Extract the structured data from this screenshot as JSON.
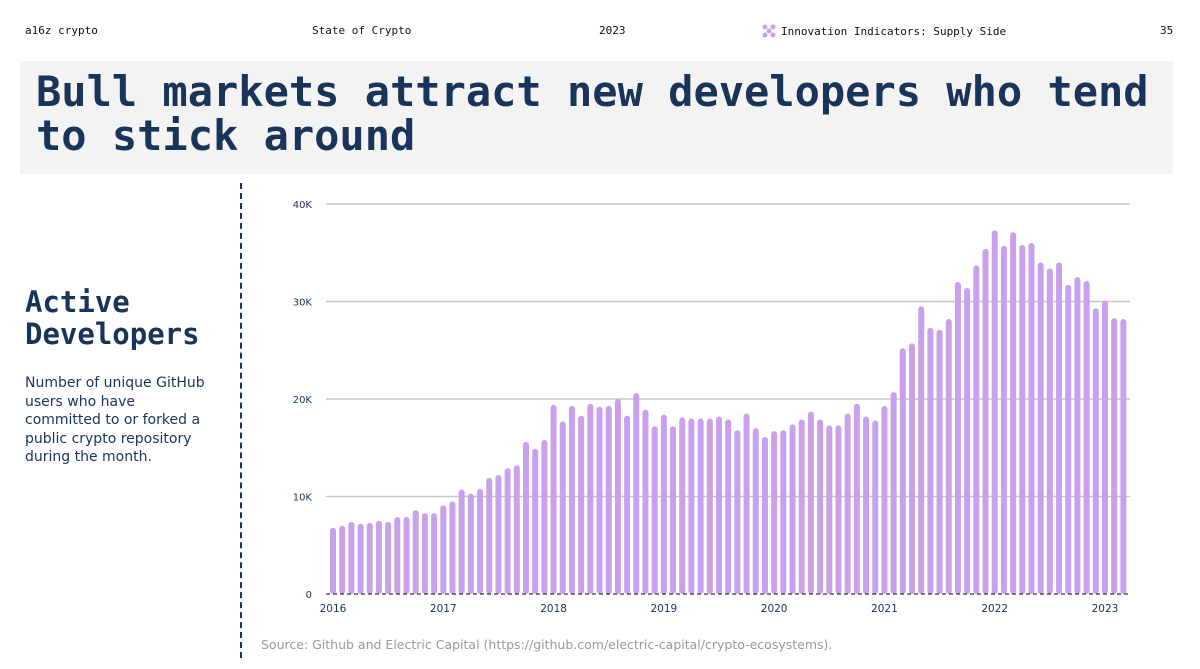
{
  "header": {
    "brand": "a16z crypto",
    "report": "State of Crypto",
    "year": "2023",
    "section": "Innovation Indicators: Supply Side",
    "page": "35",
    "section_icon": "purple-pattern-icon"
  },
  "title": "Bull markets attract new developers who tend to stick around",
  "sidebar": {
    "title": "Active Developers",
    "description": "Number of unique GitHub users who have committed to or forked a public crypto repository during the month."
  },
  "source": "Source: Github and Electric Capital (https://github.com/electric-capital/crypto-ecosystems).",
  "colors": {
    "bar": "#c9a0ec",
    "title": "#1a3358",
    "grid": "#c8c8c8"
  },
  "chart_data": {
    "type": "bar",
    "title": "",
    "xlabel": "",
    "ylabel": "",
    "x_start": "2016-01",
    "x_interval": "month",
    "x_ticks": [
      "2016",
      "2017",
      "2018",
      "2019",
      "2020",
      "2021",
      "2022",
      "2023"
    ],
    "y_ticks": [
      "0",
      "10K",
      "20K",
      "30K",
      "40K"
    ],
    "ylim": [
      0,
      40000
    ],
    "grid": true,
    "values": [
      6800,
      7000,
      7400,
      7200,
      7300,
      7500,
      7400,
      7900,
      7900,
      8600,
      8300,
      8300,
      9100,
      9500,
      10700,
      10300,
      10800,
      11900,
      12200,
      12900,
      13200,
      15600,
      14900,
      15800,
      19400,
      17700,
      19300,
      18300,
      19500,
      19200,
      19300,
      20000,
      18300,
      20600,
      18900,
      17200,
      18400,
      17200,
      18100,
      18000,
      18000,
      18000,
      18200,
      17900,
      16800,
      18500,
      17000,
      16100,
      16700,
      16800,
      17400,
      17900,
      18700,
      17900,
      17300,
      17300,
      18500,
      19500,
      18200,
      17800,
      19300,
      20700,
      25200,
      25700,
      29500,
      27300,
      27100,
      28200,
      32000,
      31400,
      33700,
      35400,
      37300,
      35700,
      37100,
      35800,
      36000,
      34000,
      33400,
      34000,
      31700,
      32500,
      32100,
      29300,
      30100,
      28300,
      28200
    ]
  }
}
